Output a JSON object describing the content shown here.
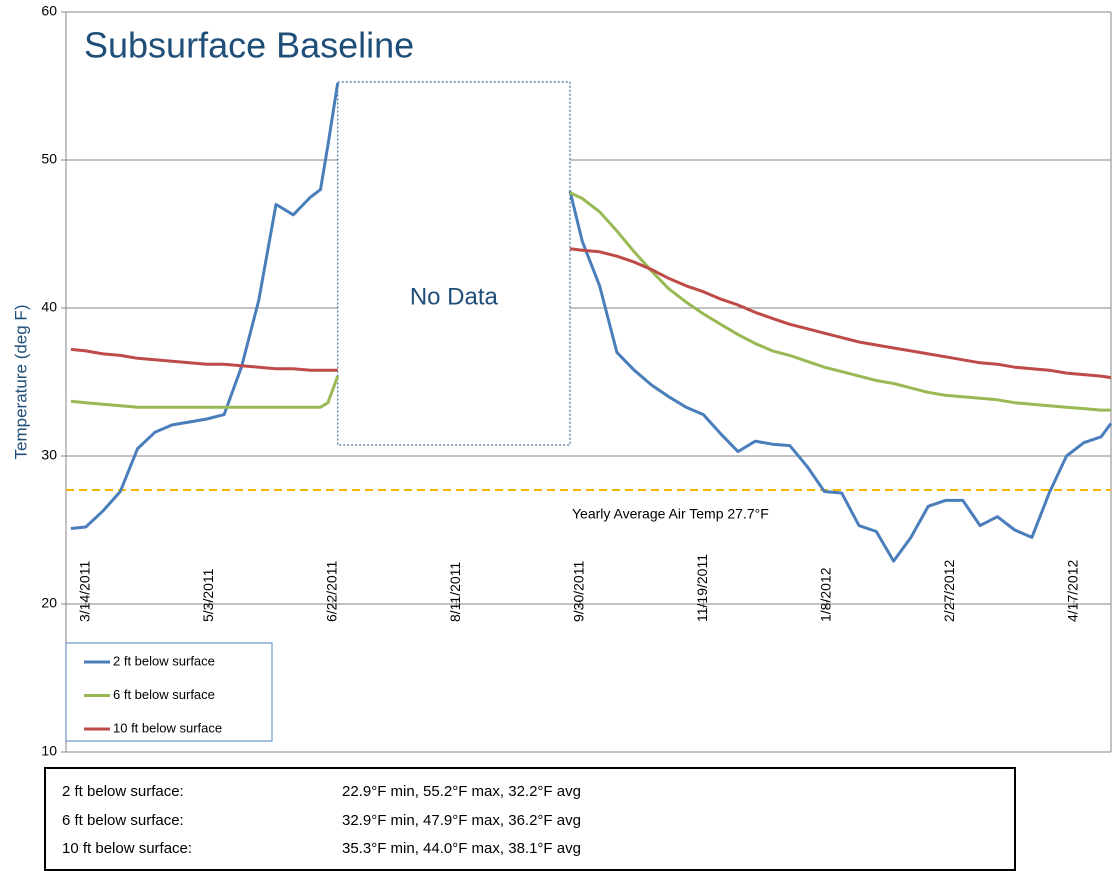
{
  "chart_data": {
    "type": "line",
    "title": "Subsurface Baseline",
    "y_label": "Temperature (deg F)",
    "x": [
      "3/8/2011",
      "3/14/2011",
      "3/21/2011",
      "3/28/2011",
      "4/4/2011",
      "4/11/2011",
      "4/18/2011",
      "4/25/2011",
      "5/2/2011",
      "5/9/2011",
      "5/16/2011",
      "5/23/2011",
      "5/30/2011",
      "6/6/2011",
      "6/13/2011",
      "6/17/2011",
      "6/20/2011",
      "6/24/2011",
      "8/11/2011",
      "9/26/2011",
      "10/1/2011",
      "10/8/2011",
      "10/15/2011",
      "10/22/2011",
      "10/29/2011",
      "11/5/2011",
      "11/12/2011",
      "11/19/2011",
      "11/26/2011",
      "12/3/2011",
      "12/10/2011",
      "12/17/2011",
      "12/24/2011",
      "12/31/2011",
      "1/7/2012",
      "1/14/2012",
      "1/21/2012",
      "1/28/2012",
      "2/4/2012",
      "2/11/2012",
      "2/18/2012",
      "2/25/2012",
      "3/3/2012",
      "3/10/2012",
      "3/17/2012",
      "3/24/2012",
      "3/31/2012",
      "4/7/2012",
      "4/14/2012",
      "4/21/2012",
      "4/28/2012",
      "5/2/2012"
    ],
    "series": [
      {
        "name": "2 ft below surface",
        "color": "#4a7ebb",
        "values": [
          25.1,
          25.2,
          26.3,
          27.6,
          30.5,
          31.6,
          32.1,
          32.3,
          32.5,
          32.8,
          36.0,
          40.5,
          47.0,
          46.3,
          47.5,
          48.0,
          51.0,
          55.2,
          null,
          47.9,
          44.5,
          41.5,
          37.0,
          35.8,
          34.8,
          34.0,
          33.3,
          32.8,
          31.5,
          30.3,
          31.0,
          30.8,
          30.7,
          29.3,
          27.6,
          27.5,
          25.3,
          24.9,
          22.9,
          24.5,
          26.6,
          27.0,
          27.0,
          25.3,
          25.9,
          25.0,
          24.5,
          27.5,
          30.0,
          30.9,
          31.3,
          32.2
        ]
      },
      {
        "name": "6 ft below surface",
        "color": "#98b954",
        "values": [
          33.7,
          33.6,
          33.5,
          33.4,
          33.3,
          33.3,
          33.3,
          33.3,
          33.3,
          33.3,
          33.3,
          33.3,
          33.3,
          33.3,
          33.3,
          33.3,
          33.6,
          35.4,
          null,
          47.8,
          47.4,
          46.5,
          45.2,
          43.8,
          42.5,
          41.3,
          40.4,
          39.6,
          38.9,
          38.2,
          37.6,
          37.1,
          36.8,
          36.4,
          36.0,
          35.7,
          35.4,
          35.1,
          34.9,
          34.6,
          34.3,
          34.1,
          34.0,
          33.9,
          33.8,
          33.6,
          33.5,
          33.4,
          33.3,
          33.2,
          33.1,
          33.1
        ]
      },
      {
        "name": "10 ft below surface",
        "color": "#be4b48",
        "values": [
          37.2,
          37.1,
          36.9,
          36.8,
          36.6,
          36.5,
          36.4,
          36.3,
          36.2,
          36.2,
          36.1,
          36.0,
          35.9,
          35.9,
          35.8,
          35.8,
          35.8,
          35.8,
          null,
          44.0,
          43.9,
          43.8,
          43.5,
          43.1,
          42.6,
          42.0,
          41.5,
          41.1,
          40.6,
          40.2,
          39.7,
          39.3,
          38.9,
          38.6,
          38.3,
          38.0,
          37.7,
          37.5,
          37.3,
          37.1,
          36.9,
          36.7,
          36.5,
          36.3,
          36.2,
          36.0,
          35.9,
          35.8,
          35.6,
          35.5,
          35.4,
          35.3
        ]
      }
    ],
    "xlim": [
      "3/6/2011",
      "5/2/2012"
    ],
    "xticks": [
      "3/14/2011",
      "5/3/2011",
      "6/22/2011",
      "8/11/2011",
      "9/30/2011",
      "11/19/2011",
      "1/8/2012",
      "2/27/2012",
      "4/17/2012"
    ],
    "ylim": [
      10,
      60
    ],
    "yticks": [
      10,
      20,
      30,
      40,
      50,
      60
    ],
    "grid": true,
    "reference_line": {
      "value": 27.7,
      "label": "Yearly Average Air Temp 27.7°F",
      "color": "#f5b800"
    },
    "no_data_label": "No Data",
    "legend": "lower left"
  },
  "stats": [
    [
      "2 ft below surface:",
      "22.9°F min, 55.2°F max, 32.2°F avg"
    ],
    [
      "6 ft below surface:",
      "32.9°F min, 47.9°F max, 36.2°F avg"
    ],
    [
      "10 ft below surface:",
      "35.3°F min, 44.0°F max, 38.1°F avg"
    ]
  ]
}
